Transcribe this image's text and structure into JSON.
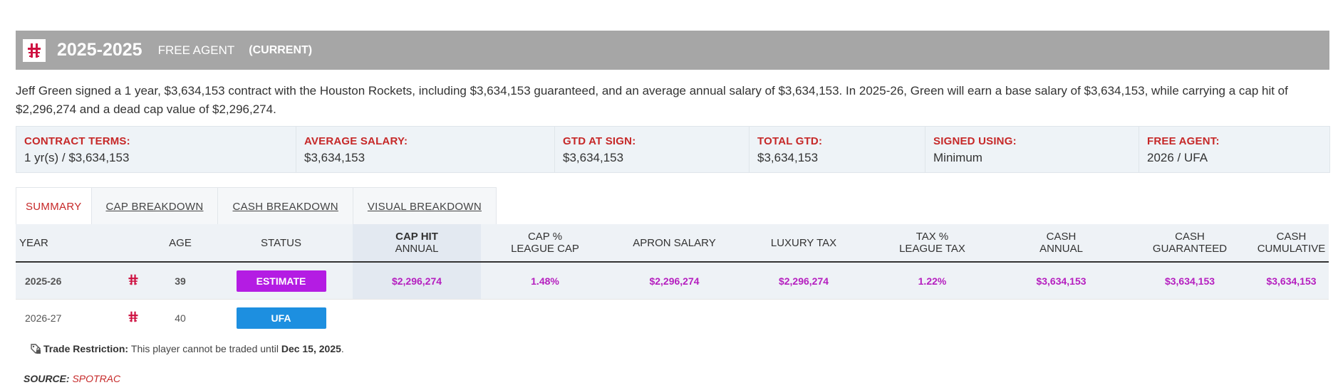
{
  "colors": {
    "header_bg": "#a6a6a6",
    "label_red": "#c62828",
    "money_purple": "#b51fbf",
    "estimate_badge": "#b41ce3",
    "ufa_badge": "#1d8fe0",
    "team_red": "#ce1141"
  },
  "header": {
    "team_logo_icon": "rockets-logo-icon",
    "years": "2025-2025",
    "type": "FREE AGENT",
    "current": "(CURRENT)"
  },
  "summary": "Jeff Green signed a 1 year, $3,634,153 contract with the Houston Rockets, including $3,634,153 guaranteed, and an average annual salary of $3,634,153. In 2025-26, Green will earn a base salary of $3,634,153, while carrying a cap hit of $2,296,274 and a dead cap value of $2,296,274.",
  "terms": [
    {
      "label": "CONTRACT TERMS:",
      "value": "1 yr(s) / $3,634,153"
    },
    {
      "label": "AVERAGE SALARY:",
      "value": "$3,634,153"
    },
    {
      "label": "GTD AT SIGN:",
      "value": "$3,634,153"
    },
    {
      "label": "TOTAL GTD:",
      "value": "$3,634,153"
    },
    {
      "label": "SIGNED USING:",
      "value": "Minimum"
    },
    {
      "label": "FREE AGENT:",
      "value": "2026 / UFA"
    }
  ],
  "tabs": [
    "SUMMARY",
    "CAP BREAKDOWN",
    "CASH BREAKDOWN",
    "VISUAL BREAKDOWN"
  ],
  "table": {
    "headers": {
      "year": "YEAR",
      "age": "AGE",
      "status": "STATUS",
      "cap_hit_1": "CAP HIT",
      "cap_hit_2": "ANNUAL",
      "cap_pct_1": "CAP %",
      "cap_pct_2": "LEAGUE CAP",
      "apron": "APRON SALARY",
      "luxury": "LUXURY TAX",
      "tax_pct_1": "TAX %",
      "tax_pct_2": "LEAGUE TAX",
      "cash_annual_1": "CASH",
      "cash_annual_2": "ANNUAL",
      "cash_gtd_1": "CASH",
      "cash_gtd_2": "GUARANTEED",
      "cash_cum_1": "CASH",
      "cash_cum_2": "CUMULATIVE"
    },
    "rows": [
      {
        "year": "2025-26",
        "age": "39",
        "status": "ESTIMATE",
        "cap_hit": "$2,296,274",
        "cap_pct": "1.48%",
        "apron": "$2,296,274",
        "luxury": "$2,296,274",
        "tax_pct": "1.22%",
        "cash_annual": "$3,634,153",
        "cash_gtd": "$3,634,153",
        "cash_cum": "$3,634,153"
      },
      {
        "year": "2026-27",
        "age": "40",
        "status": "UFA"
      }
    ]
  },
  "restriction": {
    "label": "Trade Restriction:",
    "text": "This player cannot be traded until",
    "date": "Dec 15, 2025",
    "end": "."
  },
  "source": {
    "label": "SOURCE:",
    "name": "SPOTRAC"
  }
}
